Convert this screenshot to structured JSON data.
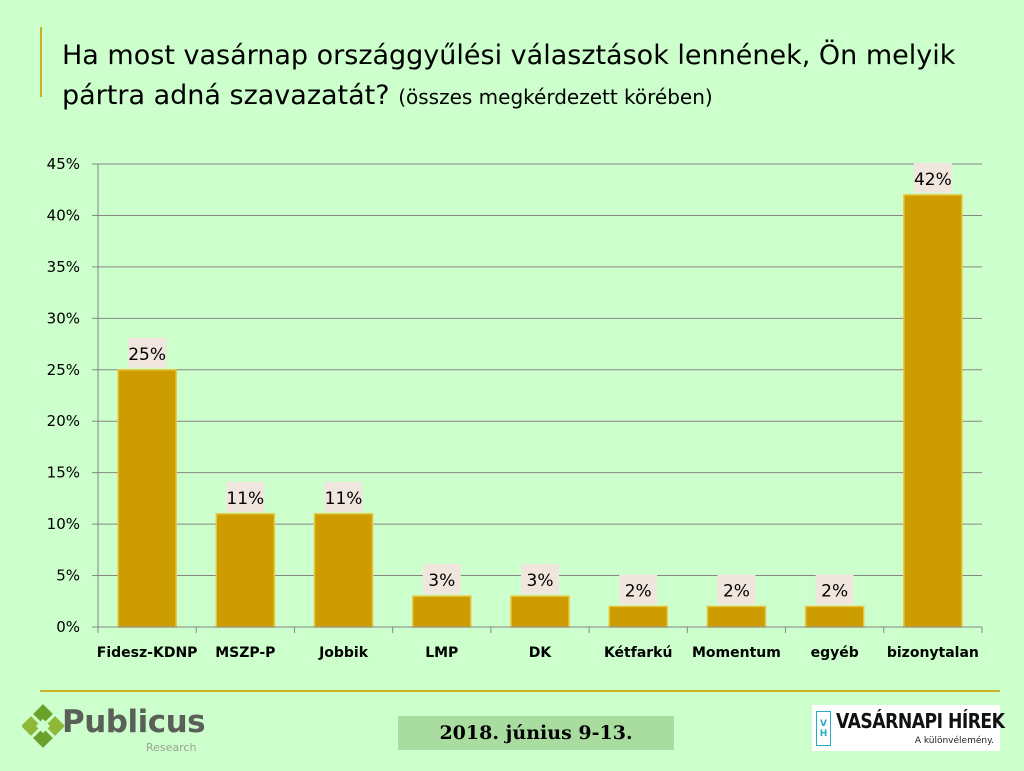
{
  "title": {
    "main": "Ha most vasárnap országgyűlési választások lennének, Ön melyik pártra adná szavazatát?",
    "sub": "(összes megkérdezett körében)"
  },
  "chart_data": {
    "type": "bar",
    "categories": [
      "Fidesz-KDNP",
      "MSZP-P",
      "Jobbik",
      "LMP",
      "DK",
      "Kétfarkú",
      "Momentum",
      "egyéb",
      "bizonytalan"
    ],
    "values": [
      25,
      11,
      11,
      3,
      3,
      2,
      2,
      2,
      42
    ],
    "value_labels": [
      "25%",
      "11%",
      "11%",
      "3%",
      "3%",
      "2%",
      "2%",
      "2%",
      "42%"
    ],
    "y_ticks": [
      "0%",
      "5%",
      "10%",
      "15%",
      "20%",
      "25%",
      "30%",
      "35%",
      "40%",
      "45%"
    ],
    "ylim": [
      0,
      45
    ],
    "y_step": 5,
    "grid": true,
    "legend": "none",
    "colors": {
      "bar": "#cc9c00",
      "bar_edge": "#e8c640",
      "label_bg": "#f0e6de",
      "grid": "#868686"
    }
  },
  "footer": {
    "date": "2018. június 9-13.",
    "logo_left": {
      "name": "Publicus",
      "sub": "Research"
    },
    "logo_right": {
      "mark_top": "V",
      "mark_bottom": "H",
      "name": "VASÁRNAPI HÍREK",
      "tagline": "A különvélemény."
    }
  }
}
